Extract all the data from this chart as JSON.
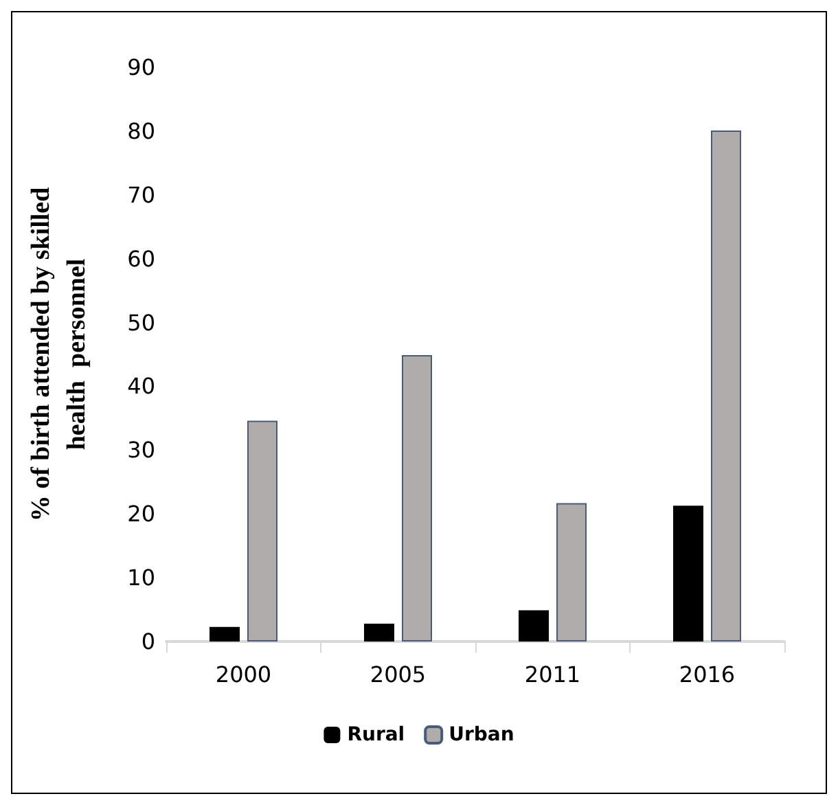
{
  "chart_data": {
    "type": "bar",
    "ylabel": "% of birth attended by skilled\nhealth  personnel",
    "categories": [
      "2000",
      "2005",
      "2011",
      "2016"
    ],
    "series": [
      {
        "name": "Rural",
        "color": "#000000",
        "values": [
          2.3,
          2.8,
          4.9,
          21.3
        ]
      },
      {
        "name": "Urban",
        "color": "#b0acac",
        "values": [
          34.6,
          44.9,
          21.7,
          80.1
        ]
      }
    ],
    "ylim": [
      0,
      90
    ],
    "yticks": [
      0,
      10,
      20,
      30,
      40,
      50,
      60,
      70,
      80,
      90
    ],
    "grid": false,
    "legend": "bottom"
  }
}
